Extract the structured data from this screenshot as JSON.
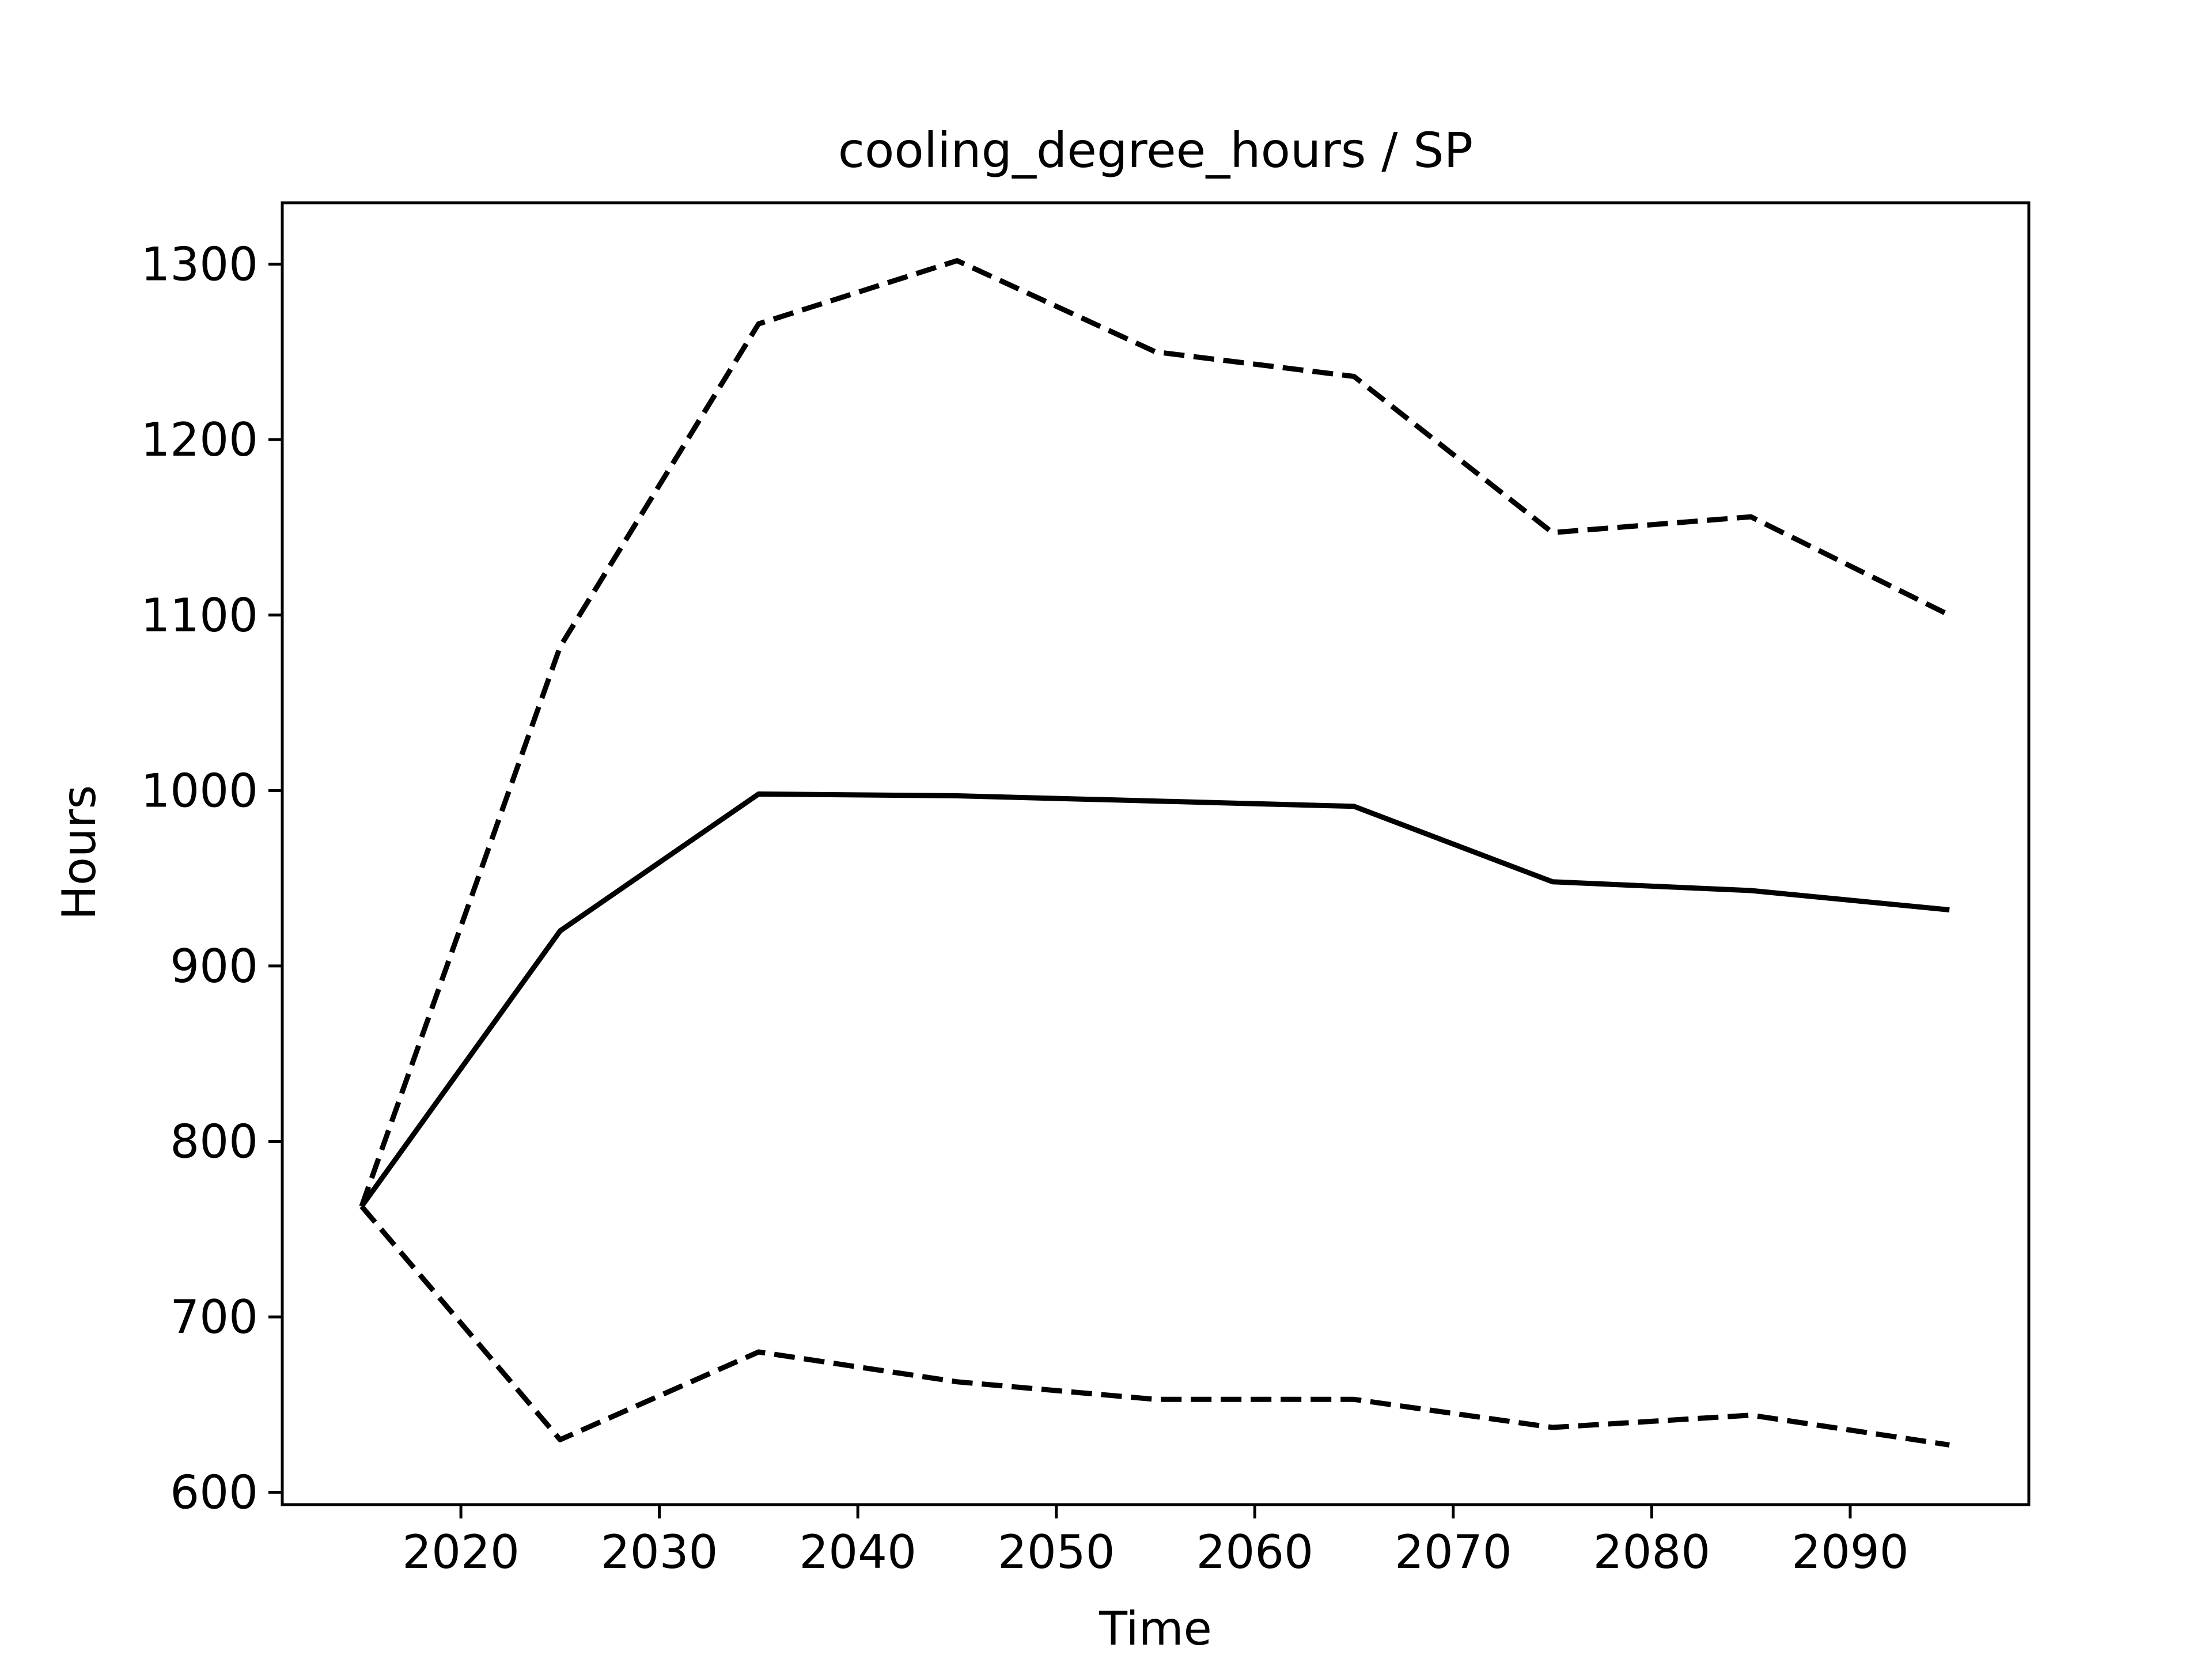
{
  "chart_data": {
    "type": "line",
    "title": "cooling_degree_hours / SP",
    "xlabel": "Time",
    "ylabel": "Hours",
    "x": [
      2015,
      2025,
      2035,
      2045,
      2055,
      2065,
      2075,
      2085,
      2095
    ],
    "xlim": [
      2011,
      2099
    ],
    "ylim": [
      593,
      1335
    ],
    "xticks": [
      2020,
      2030,
      2040,
      2050,
      2060,
      2070,
      2080,
      2090
    ],
    "yticks": [
      600,
      700,
      800,
      900,
      1000,
      1100,
      1200,
      1300
    ],
    "grid": false,
    "legend": "none",
    "series": [
      {
        "style": "solid",
        "color": "#000000",
        "values": [
          763,
          920,
          998,
          997,
          994,
          991,
          948,
          943,
          932
        ]
      },
      {
        "style": "dashed",
        "color": "#000000",
        "values": [
          763,
          1082,
          1266,
          1302,
          1250,
          1236,
          1147,
          1156,
          1100
        ]
      },
      {
        "style": "dashed",
        "color": "#000000",
        "values": [
          763,
          630,
          680,
          663,
          653,
          653,
          637,
          644,
          627
        ]
      }
    ]
  }
}
